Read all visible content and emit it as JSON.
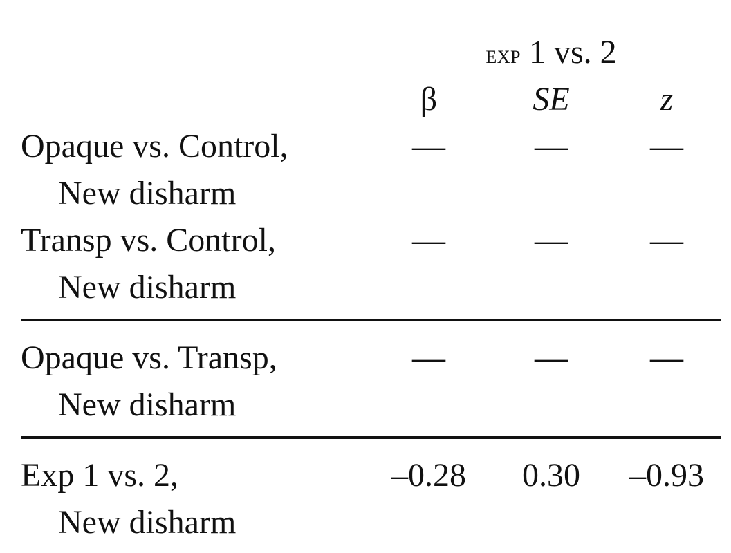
{
  "header": {
    "group_label_prefix": "exp",
    "group_label_suffix": " 1 vs. 2",
    "col_beta": "β",
    "col_se": "SE",
    "col_z": "z"
  },
  "rows": [
    {
      "label_line1": "Opaque vs. Control,",
      "label_line2": "New disharm",
      "beta": "—",
      "se": "—",
      "z": "—"
    },
    {
      "label_line1": "Transp vs. Control,",
      "label_line2": "New disharm",
      "beta": "—",
      "se": "—",
      "z": "—"
    },
    {
      "label_line1": "Opaque vs. Transp,",
      "label_line2": "New disharm",
      "beta": "—",
      "se": "—",
      "z": "—"
    },
    {
      "label_line1": "Exp 1 vs. 2,",
      "label_line2": "New disharm",
      "beta": "–0.28",
      "se": "0.30",
      "z": "–0.93"
    }
  ]
}
